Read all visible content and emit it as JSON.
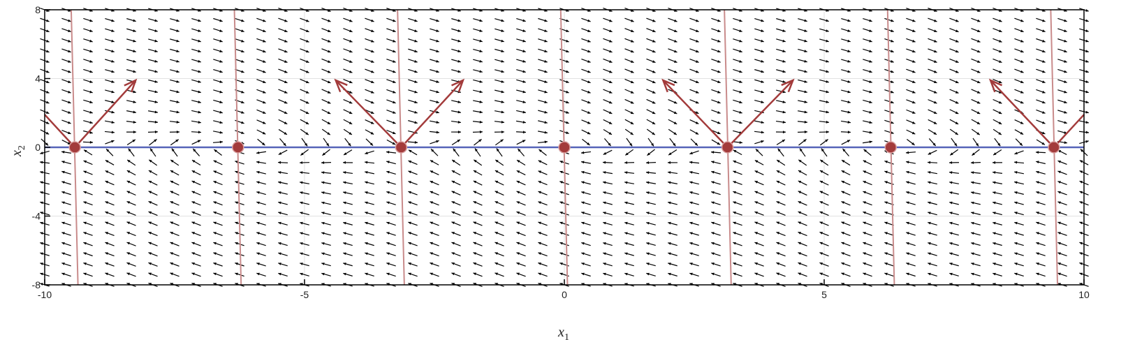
{
  "chart_data": {
    "type": "phase-portrait",
    "xlabel": "x",
    "xlabel_sub": "1",
    "ylabel": "x",
    "ylabel_sub": "2",
    "xlim": [
      -10,
      10
    ],
    "ylim": [
      -8,
      8
    ],
    "x_ticks": [
      {
        "v": -10,
        "label": "-10"
      },
      {
        "v": -5,
        "label": "-5"
      },
      {
        "v": 0,
        "label": "0"
      },
      {
        "v": 5,
        "label": "5"
      },
      {
        "v": 10,
        "label": "10"
      }
    ],
    "y_ticks": [
      {
        "v": -8,
        "label": "-8"
      },
      {
        "v": -4,
        "label": "-4"
      },
      {
        "v": 0,
        "label": "0"
      },
      {
        "v": 4,
        "label": "4"
      },
      {
        "v": 8,
        "label": "8"
      }
    ],
    "grid": true,
    "vector_field": {
      "x_range": [
        -10,
        10
      ],
      "y_range": [
        -8,
        8
      ],
      "nx": 49,
      "ny": 28,
      "field": "dx1 = x2, dx2 = -sin(x1) - x2"
    },
    "equilibria": [
      {
        "x": -9.42,
        "y": 0,
        "type": "saddle"
      },
      {
        "x": -6.28,
        "y": 0,
        "type": "stable"
      },
      {
        "x": -3.14,
        "y": 0,
        "type": "saddle"
      },
      {
        "x": 0.0,
        "y": 0,
        "type": "stable"
      },
      {
        "x": 3.14,
        "y": 0,
        "type": "saddle"
      },
      {
        "x": 6.28,
        "y": 0,
        "type": "stable"
      },
      {
        "x": 9.42,
        "y": 0,
        "type": "saddle"
      }
    ],
    "nullcline_horizontal": {
      "y": 0
    },
    "nullcline_curves": [
      {
        "x_at_top": -9.49,
        "x_at_bottom": -9.36
      },
      {
        "x_at_top": -6.35,
        "x_at_bottom": -6.22
      },
      {
        "x_at_top": -3.21,
        "x_at_bottom": -3.08
      },
      {
        "x_at_top": -0.07,
        "x_at_bottom": 0.06
      },
      {
        "x_at_top": 3.08,
        "x_at_bottom": 3.21
      },
      {
        "x_at_top": 6.22,
        "x_at_bottom": 6.35
      },
      {
        "x_at_top": 9.36,
        "x_at_bottom": 9.49
      }
    ],
    "eigenvector_arrows": [
      {
        "x0": -9.42,
        "y0": 0,
        "x1": -8.25,
        "y1": 3.9
      },
      {
        "x0": -9.42,
        "y0": 0,
        "x1": -10.0,
        "y1": 1.9
      },
      {
        "x0": -3.14,
        "y0": 0,
        "x1": -1.95,
        "y1": 3.9
      },
      {
        "x0": -3.14,
        "y0": 0,
        "x1": -4.4,
        "y1": 3.9
      },
      {
        "x0": 3.14,
        "y0": 0,
        "x1": 4.4,
        "y1": 3.9
      },
      {
        "x0": 3.14,
        "y0": 0,
        "x1": 1.9,
        "y1": 3.9
      },
      {
        "x0": 9.42,
        "y0": 0,
        "x1": 8.2,
        "y1": 3.9
      },
      {
        "x0": 9.42,
        "y0": 0,
        "x1": 10.0,
        "y1": 1.9
      }
    ],
    "colors": {
      "vector": "#000000",
      "nullcline_horizontal": "#5563b8",
      "nullcline_curves": "#c98b8b",
      "equilibrium_fill": "#a33b3b",
      "equilibrium_stroke": "#d9a0a0",
      "eigen_arrow": "#a33b3b",
      "grid": "#e2e2e2",
      "axes": "#000000"
    }
  }
}
